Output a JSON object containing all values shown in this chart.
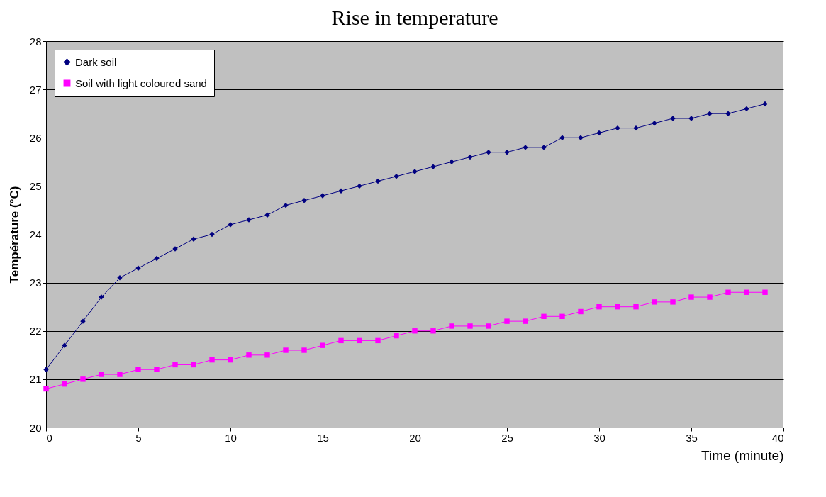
{
  "chart_data": {
    "type": "line",
    "title": "Rise in temperature",
    "xlabel": "Time (minute)",
    "ylabel": "Température (°C)",
    "x": [
      0,
      1,
      2,
      3,
      4,
      5,
      6,
      7,
      8,
      9,
      10,
      11,
      12,
      13,
      14,
      15,
      16,
      17,
      18,
      19,
      20,
      21,
      22,
      23,
      24,
      25,
      26,
      27,
      28,
      29,
      30,
      31,
      32,
      33,
      34,
      35,
      36,
      37,
      38,
      39
    ],
    "series": [
      {
        "name": "Dark soil",
        "color": "#000080",
        "marker": "diamond",
        "values": [
          21.2,
          21.7,
          22.2,
          22.7,
          23.1,
          23.3,
          23.5,
          23.7,
          23.9,
          24.0,
          24.2,
          24.3,
          24.4,
          24.6,
          24.7,
          24.8,
          24.9,
          25.0,
          25.1,
          25.2,
          25.3,
          25.4,
          25.5,
          25.6,
          25.7,
          25.7,
          25.8,
          25.8,
          26.0,
          26.0,
          26.1,
          26.2,
          26.2,
          26.3,
          26.4,
          26.4,
          26.5,
          26.5,
          26.6,
          26.7
        ]
      },
      {
        "name": "Soil with light coloured sand",
        "color": "#ff00ff",
        "marker": "square",
        "values": [
          20.8,
          20.9,
          21.0,
          21.1,
          21.1,
          21.2,
          21.2,
          21.3,
          21.3,
          21.4,
          21.4,
          21.5,
          21.5,
          21.6,
          21.6,
          21.7,
          21.8,
          21.8,
          21.8,
          21.9,
          22.0,
          22.0,
          22.1,
          22.1,
          22.1,
          22.2,
          22.2,
          22.3,
          22.3,
          22.4,
          22.5,
          22.5,
          22.5,
          22.6,
          22.6,
          22.7,
          22.7,
          22.8,
          22.8,
          22.8
        ]
      }
    ],
    "xlim": [
      0,
      40
    ],
    "xticks": [
      0,
      5,
      10,
      15,
      20,
      25,
      30,
      35,
      40
    ],
    "ylim": [
      20,
      28
    ],
    "yticks": [
      20,
      21,
      22,
      23,
      24,
      25,
      26,
      27,
      28
    ],
    "grid": "y",
    "legend": "top left",
    "line_style": "solid"
  }
}
